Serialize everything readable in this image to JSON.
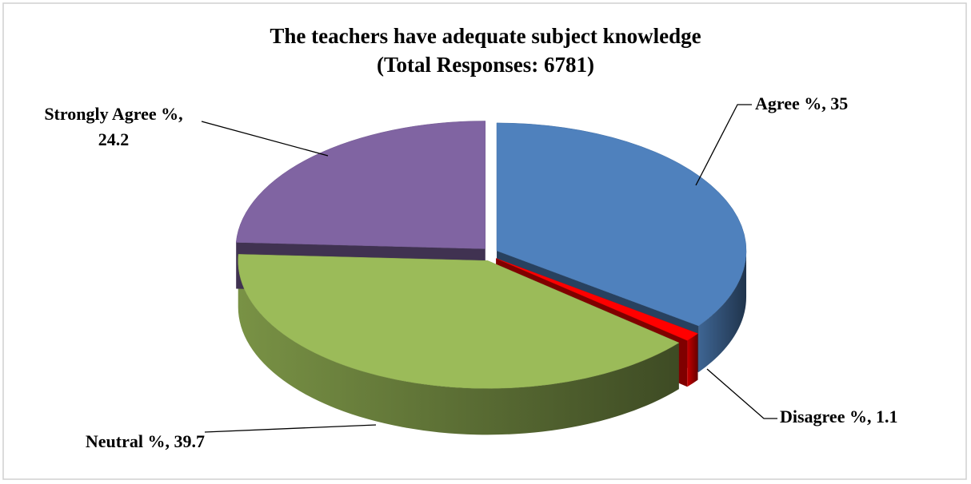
{
  "chart_data": {
    "type": "pie",
    "title": "The teachers have adequate subject knowledge",
    "subtitle": "(Total Responses: 6781)",
    "values": [
      35,
      1.1,
      39.7,
      24.2
    ],
    "value_labels": [
      "Agree %, 35",
      "Disagree %, 1.1",
      "Neutral %, 39.7",
      "Strongly Agree %, 24.2"
    ],
    "colors": [
      "#4f81bd",
      "#ff0000",
      "#9bbb59",
      "#8064a2"
    ]
  }
}
